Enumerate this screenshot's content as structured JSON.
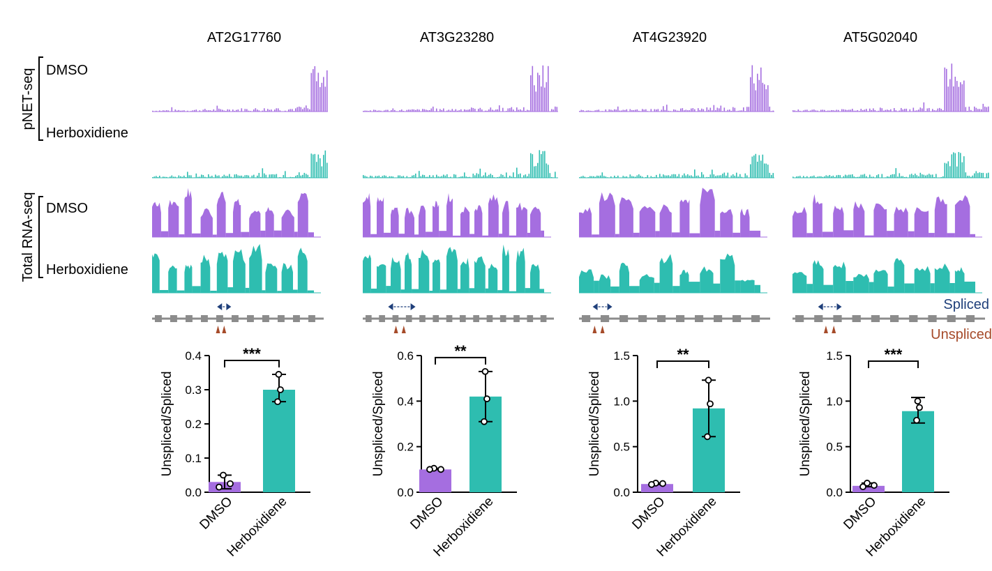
{
  "colors": {
    "dmso": "#A56EE0",
    "herbo": "#2EBDB0",
    "gene": "#8C8C8C",
    "spliced": "#1F3F7A",
    "unspliced": "#A64B2A",
    "axis": "#000000"
  },
  "labels": {
    "pnet": "pNET-seq",
    "total": "Total RNA-seq",
    "dmso": "DMSO",
    "herbo": "Herboxidiene",
    "spliced": "Spliced",
    "unspliced": "Unspliced"
  },
  "chart_data": [
    {
      "type": "bar",
      "gene": "AT2G17760",
      "title": "AT2G17760",
      "categories": [
        "DMSO",
        "Herboxidiene"
      ],
      "values": [
        0.03,
        0.3
      ],
      "error_low": [
        0.01,
        0.265
      ],
      "error_high": [
        0.05,
        0.345
      ],
      "points": [
        [
          0.05,
          0.025,
          0.015
        ],
        [
          0.345,
          0.3,
          0.265
        ]
      ],
      "ylabel": "Unspliced/Spliced",
      "ylim": [
        0,
        0.4
      ],
      "yticks": [
        "0.0",
        "0.1",
        "0.2",
        "0.3",
        "0.4"
      ],
      "yticks_val": [
        0,
        0.1,
        0.2,
        0.3,
        0.4
      ],
      "significance": "***",
      "splice_marks": [
        0.37,
        0.45
      ],
      "unspliced_marks": [
        0.375,
        0.41
      ],
      "exon_count": 10
    },
    {
      "type": "bar",
      "gene": "AT3G23280",
      "title": "AT3G23280",
      "categories": [
        "DMSO",
        "Herboxidiene"
      ],
      "values": [
        0.1,
        0.42
      ],
      "error_low": [
        0.1,
        0.31
      ],
      "error_high": [
        0.105,
        0.53
      ],
      "points": [
        [
          0.105,
          0.1,
          0.1
        ],
        [
          0.53,
          0.41,
          0.31
        ]
      ],
      "ylabel": "Unspliced/Spliced",
      "ylim": [
        0,
        0.6
      ],
      "yticks": [
        "0.0",
        "0.2",
        "0.4",
        "0.6"
      ],
      "yticks_val": [
        0,
        0.2,
        0.4,
        0.6
      ],
      "significance": "**",
      "splice_marks": [
        0.13,
        0.27
      ],
      "unspliced_marks": [
        0.17,
        0.21
      ],
      "exon_count": 13
    },
    {
      "type": "bar",
      "gene": "AT4G23920",
      "title": "AT4G23920",
      "categories": [
        "DMSO",
        "Herboxidiene"
      ],
      "values": [
        0.09,
        0.92
      ],
      "error_low": [
        0.085,
        0.61
      ],
      "error_high": [
        0.1,
        1.23
      ],
      "points": [
        [
          0.1,
          0.095,
          0.085
        ],
        [
          1.23,
          0.97,
          0.61
        ]
      ],
      "ylabel": "Unspliced/Spliced",
      "ylim": [
        0,
        1.5
      ],
      "yticks": [
        "0.0",
        "0.5",
        "1.0",
        "1.5"
      ],
      "yticks_val": [
        0,
        0.5,
        1.0,
        1.5
      ],
      "significance": "**",
      "splice_marks": [
        0.07,
        0.17
      ],
      "unspliced_marks": [
        0.08,
        0.12
      ],
      "exon_count": 9
    },
    {
      "type": "bar",
      "gene": "AT5G02040",
      "title": "AT5G02040",
      "categories": [
        "DMSO",
        "Herboxidiene"
      ],
      "values": [
        0.07,
        0.89
      ],
      "error_low": [
        0.06,
        0.76
      ],
      "error_high": [
        0.1,
        1.04
      ],
      "points": [
        [
          0.1,
          0.075,
          0.06
        ],
        [
          1.0,
          0.93,
          0.79
        ]
      ],
      "ylabel": "Unspliced/Spliced",
      "ylim": [
        0,
        1.5
      ],
      "yticks": [
        "0.0",
        "0.5",
        "1.0",
        "1.5"
      ],
      "yticks_val": [
        0,
        0.5,
        1.0,
        1.5
      ],
      "significance": "***",
      "splice_marks": [
        0.13,
        0.25
      ],
      "unspliced_marks": [
        0.17,
        0.21
      ],
      "exon_count": 9
    }
  ]
}
